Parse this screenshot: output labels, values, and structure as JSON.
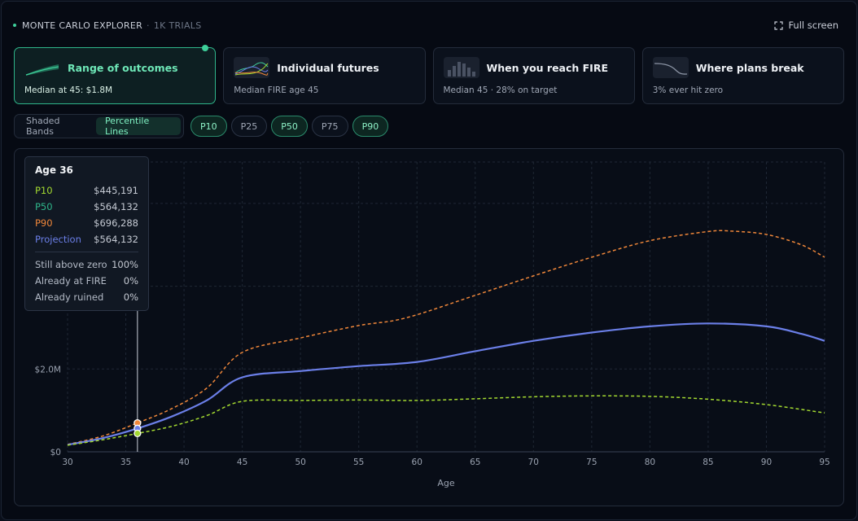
{
  "header": {
    "title": "MONTE CARLO EXPLORER",
    "separator": "·",
    "trials": "1K TRIALS",
    "fullscreen_label": "Full screen"
  },
  "cards": [
    {
      "title": "Range of outcomes",
      "subtitle": "Median at 45: $1.8M",
      "active": true,
      "icon": "fan-chart-icon"
    },
    {
      "title": "Individual futures",
      "subtitle": "Median FIRE age 45",
      "active": false,
      "icon": "spaghetti-chart-icon"
    },
    {
      "title": "When you reach FIRE",
      "subtitle": "Median 45 · 28% on target",
      "active": false,
      "icon": "histogram-icon"
    },
    {
      "title": "Where plans break",
      "subtitle": "3% ever hit zero",
      "active": false,
      "icon": "decline-curve-icon"
    }
  ],
  "view_toggle": {
    "options": [
      "Shaded Bands",
      "Percentile Lines"
    ],
    "selected": "Percentile Lines"
  },
  "percentile_pills": [
    {
      "label": "P10",
      "on": true
    },
    {
      "label": "P25",
      "on": false
    },
    {
      "label": "P50",
      "on": true
    },
    {
      "label": "P75",
      "on": false
    },
    {
      "label": "P90",
      "on": true
    }
  ],
  "tooltip": {
    "title": "Age 36",
    "rows": [
      {
        "label": "P10",
        "value": "$445,191",
        "color": "#a3d930"
      },
      {
        "label": "P50",
        "value": "$564,132",
        "color": "#2fb58a"
      },
      {
        "label": "P90",
        "value": "$696,288",
        "color": "#f0873a"
      },
      {
        "label": "Projection",
        "value": "$564,132",
        "color": "#6b7fe8"
      }
    ],
    "stats": [
      {
        "label": "Still above zero",
        "value": "100%"
      },
      {
        "label": "Already at FIRE",
        "value": "0%"
      },
      {
        "label": "Already ruined",
        "value": "0%"
      }
    ]
  },
  "chart_data": {
    "type": "line",
    "xlabel": "Age",
    "xlim": [
      30,
      95
    ],
    "ylim": [
      0,
      7000000
    ],
    "x_ticks": [
      30,
      35,
      40,
      45,
      50,
      55,
      60,
      65,
      70,
      75,
      80,
      85,
      90,
      95
    ],
    "y_ticks": [
      {
        "value": 0,
        "label": "$0"
      },
      {
        "value": 2000000,
        "label": "$2.0M"
      }
    ],
    "y_gridlines": [
      0,
      2000000,
      4000000,
      6000000
    ],
    "hover_age": 36,
    "series": [
      {
        "name": "P90",
        "color": "#f0873a",
        "dashed": true,
        "x": [
          30,
          33,
          36,
          39,
          42,
          45,
          50,
          55,
          59,
          65,
          70,
          75,
          80,
          85,
          87,
          90,
          93,
          95
        ],
        "y": [
          180000,
          380000,
          696288,
          1050000,
          1550000,
          2400000,
          2750000,
          3050000,
          3230000,
          3780000,
          4250000,
          4700000,
          5100000,
          5320000,
          5330000,
          5250000,
          5000000,
          4700000
        ]
      },
      {
        "name": "Projection",
        "color": "#6b7fe8",
        "dashed": false,
        "x": [
          30,
          33,
          36,
          39,
          42,
          45,
          50,
          55,
          60,
          65,
          70,
          75,
          80,
          85,
          90,
          93,
          95
        ],
        "y": [
          170000,
          330000,
          564132,
          860000,
          1250000,
          1800000,
          1950000,
          2070000,
          2170000,
          2430000,
          2680000,
          2880000,
          3030000,
          3100000,
          3030000,
          2850000,
          2680000
        ]
      },
      {
        "name": "P10",
        "color": "#a3d930",
        "dashed": true,
        "x": [
          30,
          33,
          36,
          39,
          42,
          45,
          50,
          55,
          60,
          65,
          70,
          75,
          80,
          85,
          90,
          95
        ],
        "y": [
          160000,
          290000,
          445191,
          620000,
          880000,
          1220000,
          1240000,
          1250000,
          1240000,
          1280000,
          1330000,
          1350000,
          1340000,
          1270000,
          1140000,
          940000
        ]
      }
    ]
  }
}
